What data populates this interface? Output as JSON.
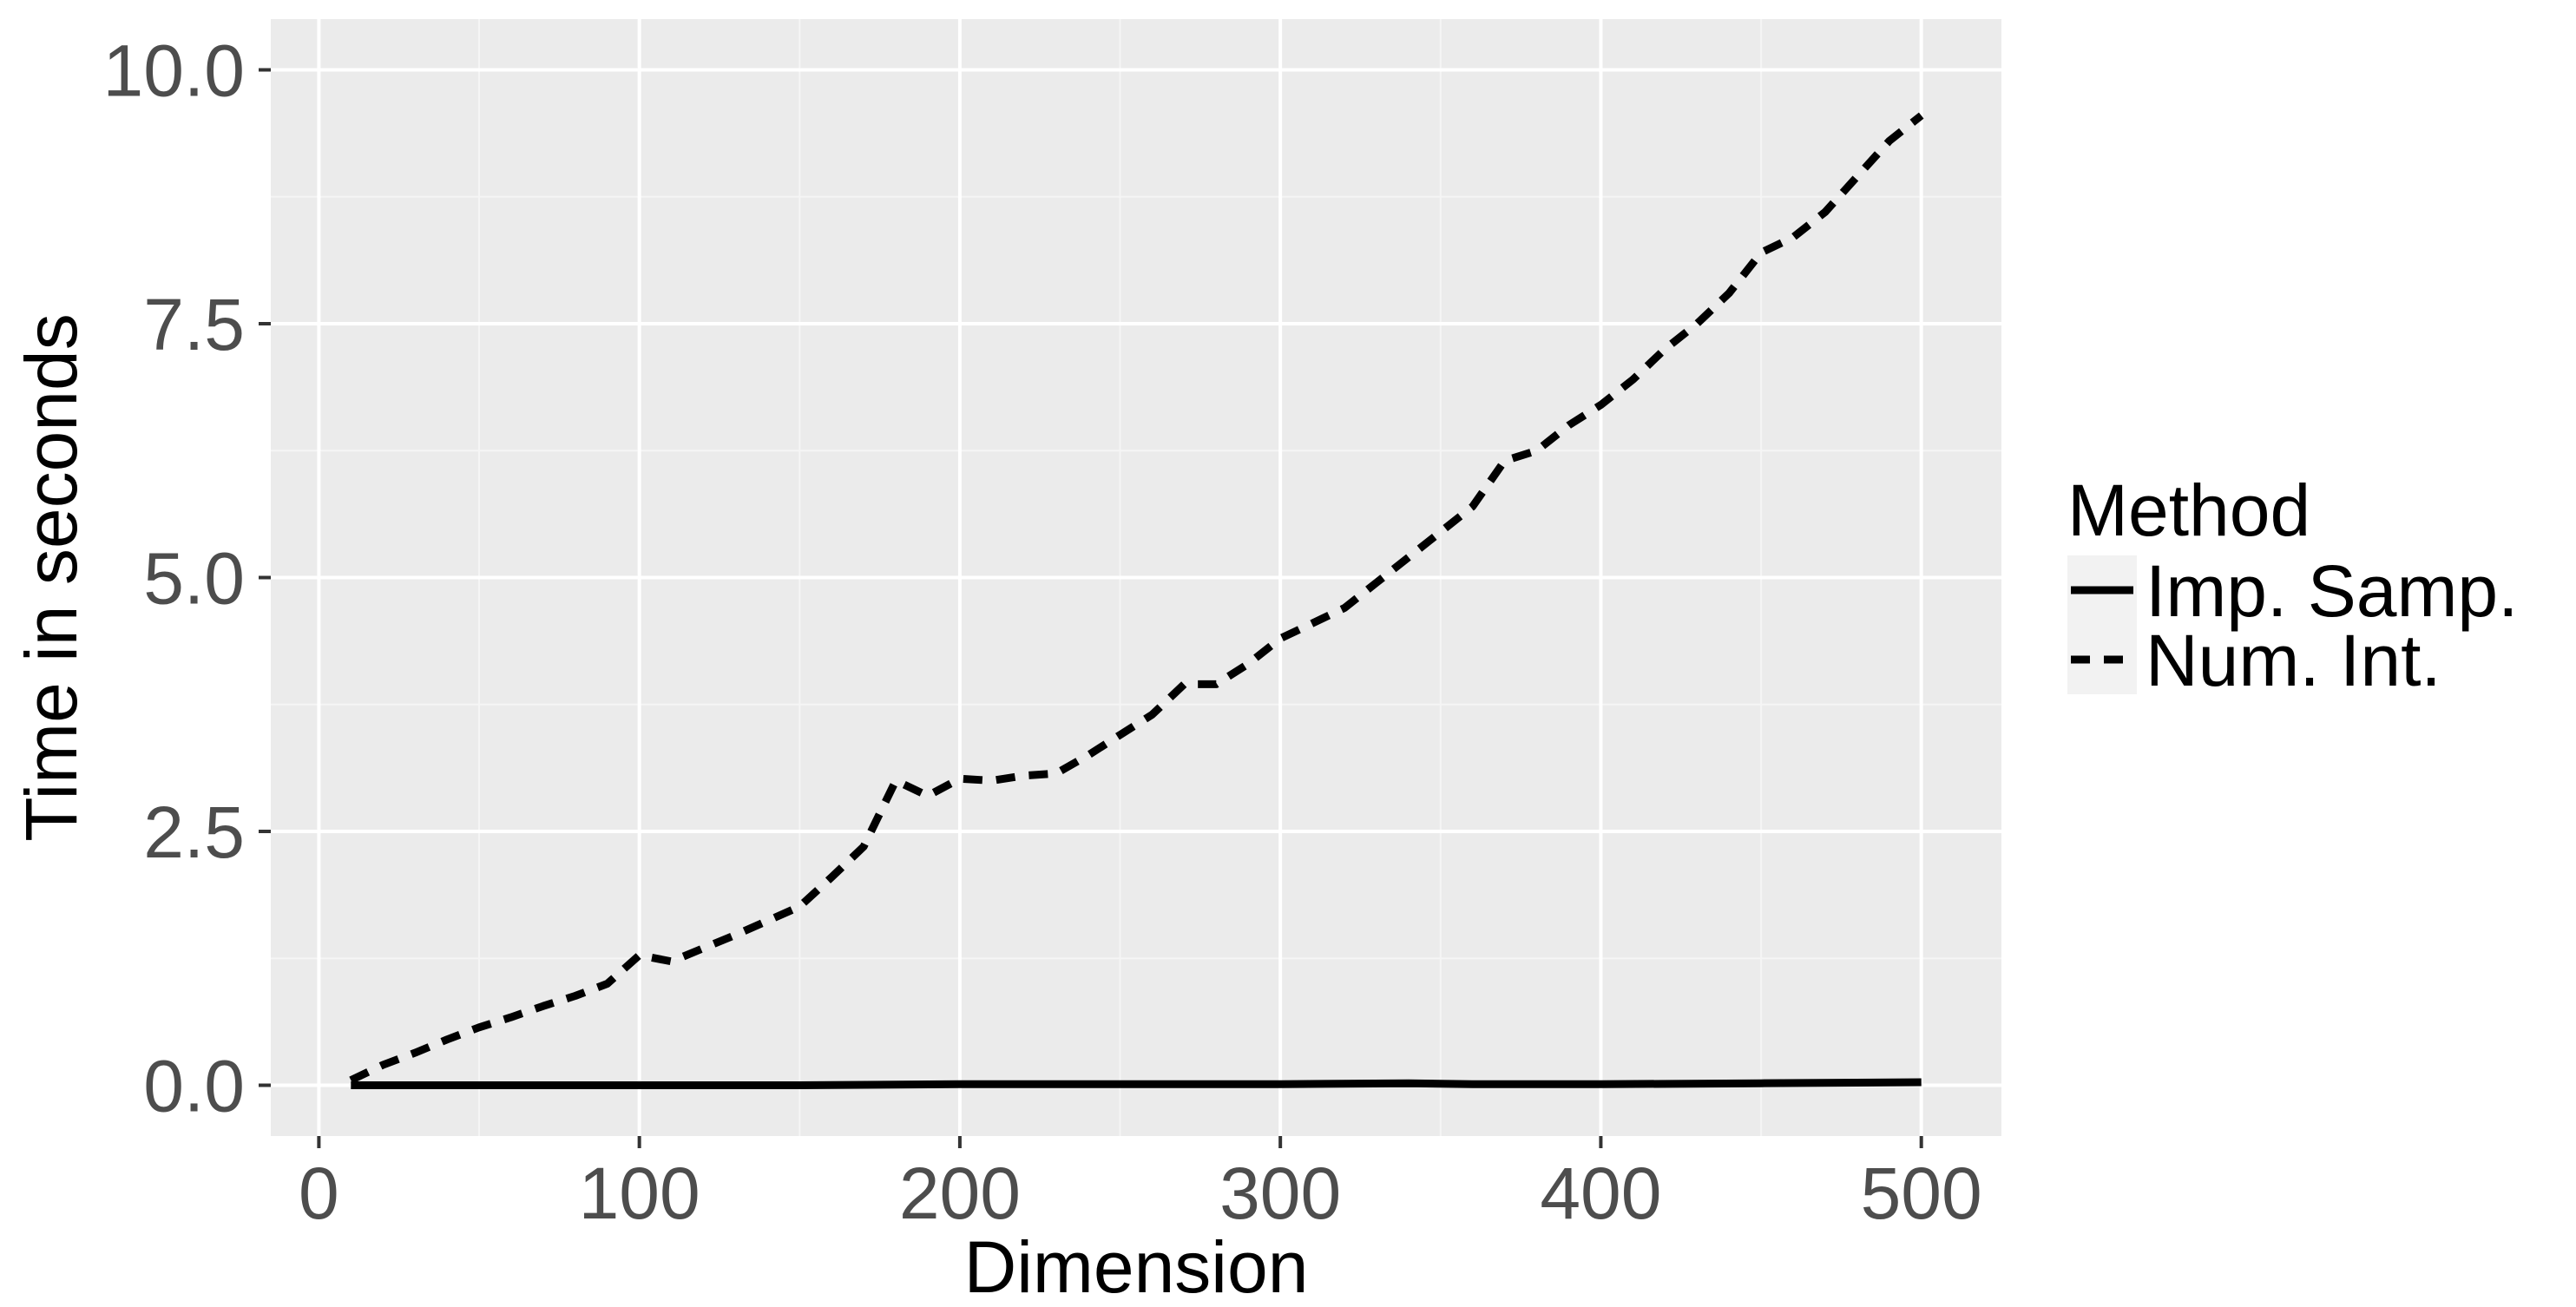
{
  "chart_data": {
    "type": "line",
    "xlabel": "Dimension",
    "ylabel": "Time in seconds",
    "xlim": [
      -15,
      525
    ],
    "ylim": [
      -0.5,
      10.5
    ],
    "x_ticks": [
      0,
      100,
      200,
      300,
      400,
      500
    ],
    "x_tick_labels": [
      "0",
      "100",
      "200",
      "300",
      "400",
      "500"
    ],
    "y_ticks": [
      0.0,
      2.5,
      5.0,
      7.5,
      10.0
    ],
    "y_tick_labels": [
      "0.0",
      "2.5",
      "5.0",
      "7.5",
      "10.0"
    ],
    "grid": true,
    "legend": {
      "title": "Method",
      "placement": "right"
    },
    "series": [
      {
        "name": "Imp. Samp.",
        "style": "solid",
        "color": "#000000",
        "x": [
          10,
          50,
          100,
          150,
          200,
          250,
          300,
          340,
          360,
          400,
          450,
          500
        ],
        "y": [
          0.0,
          0.0,
          0.0,
          0.0,
          0.01,
          0.01,
          0.01,
          0.02,
          0.01,
          0.01,
          0.02,
          0.03
        ]
      },
      {
        "name": "Num. Int.",
        "style": "dashed",
        "color": "#000000",
        "x": [
          10,
          20,
          30,
          40,
          50,
          60,
          70,
          80,
          90,
          100,
          110,
          120,
          130,
          140,
          150,
          160,
          170,
          180,
          190,
          200,
          210,
          220,
          230,
          240,
          250,
          260,
          270,
          280,
          290,
          300,
          310,
          320,
          330,
          340,
          350,
          360,
          370,
          380,
          390,
          400,
          410,
          420,
          430,
          440,
          450,
          460,
          470,
          480,
          490,
          500
        ],
        "y": [
          0.05,
          0.2,
          0.32,
          0.45,
          0.57,
          0.67,
          0.78,
          0.88,
          1.0,
          1.28,
          1.22,
          1.35,
          1.48,
          1.62,
          1.76,
          2.05,
          2.35,
          3.0,
          2.85,
          3.02,
          3.0,
          3.05,
          3.07,
          3.25,
          3.45,
          3.65,
          3.95,
          3.95,
          4.15,
          4.4,
          4.55,
          4.7,
          4.95,
          5.2,
          5.45,
          5.7,
          6.15,
          6.25,
          6.5,
          6.7,
          6.95,
          7.25,
          7.5,
          7.8,
          8.2,
          8.35,
          8.6,
          8.95,
          9.3,
          9.55
        ]
      }
    ]
  }
}
